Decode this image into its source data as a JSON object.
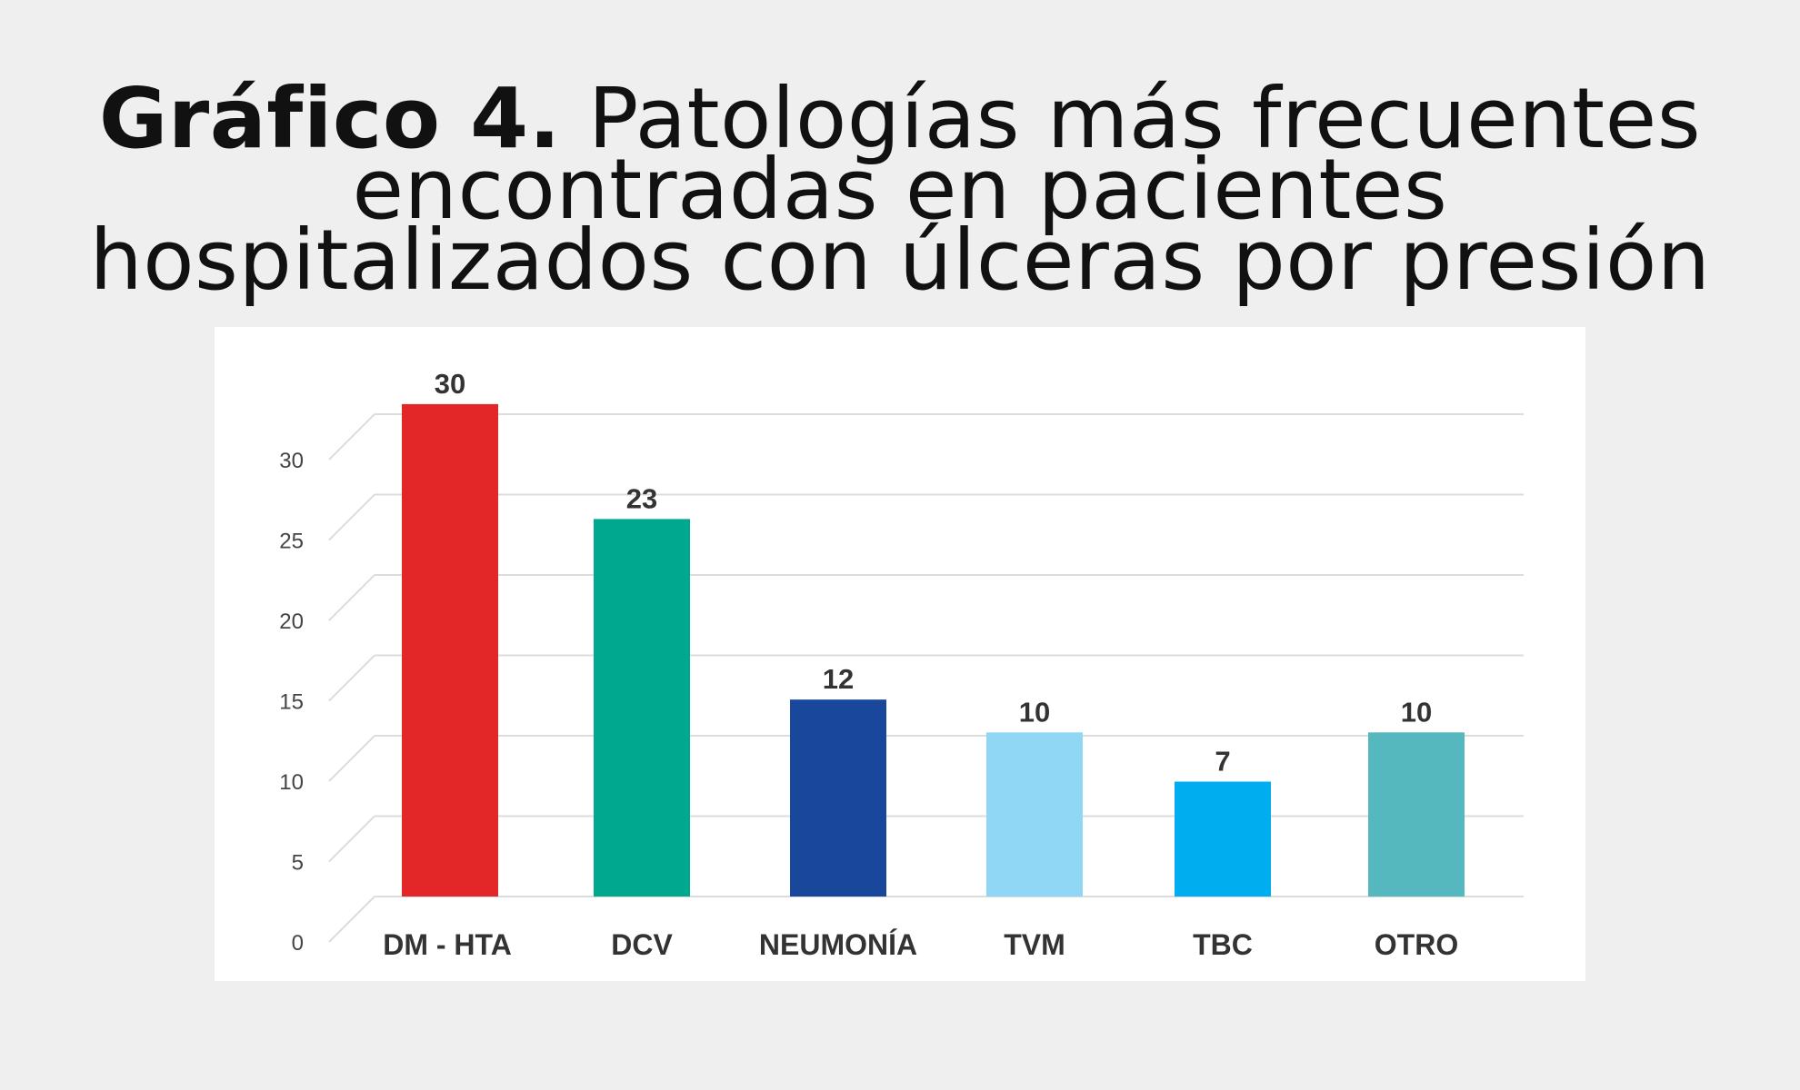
{
  "title": {
    "lead": "Gráfico 4.",
    "rest": " Patologías más frecuentes",
    "line2": "encontradas en pacientes",
    "line3": "hospitalizados con úlceras por presión"
  },
  "chart_data": {
    "type": "bar",
    "categories": [
      "DM - HTA",
      "DCV",
      "NEUMONÍA",
      "TVM",
      "TBC",
      "OTRO"
    ],
    "values": [
      30,
      23,
      12,
      10,
      7,
      10
    ],
    "data_labels": [
      "30",
      "23",
      "12",
      "10",
      "7",
      "10"
    ],
    "colors": [
      "#e32728",
      "#00a88f",
      "#19479b",
      "#8fd7f5",
      "#00aeef",
      "#55b8be"
    ],
    "yticks": [
      0,
      5,
      10,
      15,
      20,
      25,
      30
    ],
    "ylim": [
      0,
      32
    ],
    "grid": true,
    "xlabel": "",
    "ylabel": ""
  }
}
